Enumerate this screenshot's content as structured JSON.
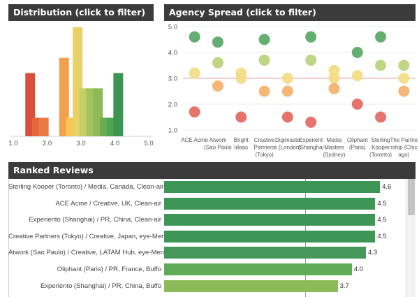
{
  "distribution": {
    "title": "Distribution   (click to filter)",
    "chart_data": {
      "type": "bar",
      "title": "Distribution",
      "x_ticks": [
        "1.0",
        "2.0",
        "3.0",
        "4.0",
        "5.0"
      ],
      "xlim": [
        1.0,
        5.0
      ],
      "bins": [
        {
          "x": 1.5,
          "value": 0.58,
          "color": "#d9503a"
        },
        {
          "x": 1.7,
          "value": 0.17,
          "color": "#e7663e"
        },
        {
          "x": 1.9,
          "value": 0.17,
          "color": "#ea7a45"
        },
        {
          "x": 2.5,
          "value": 0.72,
          "color": "#f2a04c"
        },
        {
          "x": 2.7,
          "value": 0.17,
          "color": "#f6c857"
        },
        {
          "x": 2.9,
          "value": 1.0,
          "color": "#e8d168"
        },
        {
          "x": 3.1,
          "value": 0.44,
          "color": "#c4cf66"
        },
        {
          "x": 3.3,
          "value": 0.44,
          "color": "#a3c15c"
        },
        {
          "x": 3.5,
          "value": 0.44,
          "color": "#8fba58"
        },
        {
          "x": 3.7,
          "value": 0.17,
          "color": "#6aad54"
        },
        {
          "x": 3.9,
          "value": 0.17,
          "color": "#4fa354"
        },
        {
          "x": 4.1,
          "value": 0.58,
          "color": "#3d9552"
        }
      ]
    }
  },
  "agency_spread": {
    "title": "Agency Spread   (click to filter)",
    "chart_data": {
      "type": "scatter",
      "title": "Agency Spread",
      "ylim": [
        1.0,
        5.0
      ],
      "y_ticks": [
        "1.0",
        "2.0",
        "3.0",
        "4.0",
        "5.0"
      ],
      "reference_line": 3.0,
      "categories": [
        {
          "label": [
            "ACE Acme"
          ],
          "points": [
            4.6,
            3.2,
            1.7
          ]
        },
        {
          "label": [
            "Atwork",
            "(Sao Paulo"
          ],
          "points": [
            4.4,
            3.6,
            2.7
          ]
        },
        {
          "label": [
            "Bright",
            "Ideas"
          ],
          "points": [
            3.2,
            3.0,
            1.5
          ]
        },
        {
          "label": [
            "Creative",
            "Partners",
            "(Tokyo)"
          ],
          "points": [
            4.5,
            3.7,
            2.5
          ]
        },
        {
          "label": [
            "Digimaste",
            "s (London)"
          ],
          "points": [
            3.0,
            2.5,
            1.5
          ]
        },
        {
          "label": [
            "Experient",
            "(Shanghai"
          ],
          "points": [
            4.6,
            3.7,
            1.3
          ]
        },
        {
          "label": [
            "Media",
            "Masters",
            "(Sydney)"
          ],
          "points": [
            3.3,
            3.0,
            2.6
          ]
        },
        {
          "label": [
            "Oliphant",
            "(Paris)"
          ],
          "points": [
            4.0,
            3.1,
            2.0
          ]
        },
        {
          "label": [
            "Sterling",
            "Kooper",
            "(Toronto)"
          ],
          "points": [
            4.6,
            3.5,
            1.5
          ]
        },
        {
          "label": [
            "The Partne",
            "rship (Chic",
            "ago)"
          ],
          "points": [
            3.5,
            3.0,
            2.5
          ]
        }
      ]
    }
  },
  "ranked_reviews": {
    "title": "Ranked Reviews",
    "chart_data": {
      "type": "bar",
      "orientation": "horizontal",
      "xlim": [
        0,
        5
      ],
      "reference_line": 3.0,
      "rows": [
        {
          "label": "Sterling Kooper (Toronto) / Media, Canada, Clean-air",
          "value": 4.6,
          "display": "4.6",
          "color": "#3e9656"
        },
        {
          "label": "ACE Acme / Creative, UK, Clean-air",
          "value": 4.5,
          "display": "4.5",
          "color": "#3e9656"
        },
        {
          "label": "Experiento (Shanghai) / PR, China, Clean-air",
          "value": 4.5,
          "display": "4.5",
          "color": "#3e9656"
        },
        {
          "label": "Creative Partners (Tokyo) / Creative, Japan, eye-Men",
          "value": 4.5,
          "display": "4.5",
          "color": "#3e9656"
        },
        {
          "label": "Atwork (Sao Paulo) / Creative, LATAM Hub, eye-Men",
          "value": 4.3,
          "display": "4.3",
          "color": "#46985a"
        },
        {
          "label": "Oliphant (Paris) / PR, France, Buffo",
          "value": 4.0,
          "display": "4.0",
          "color": "#5fab57"
        },
        {
          "label": "Experiento (Shanghai) / PR, China, Buffo",
          "value": 3.7,
          "display": "3.7",
          "color": "#8dba58"
        }
      ]
    }
  }
}
